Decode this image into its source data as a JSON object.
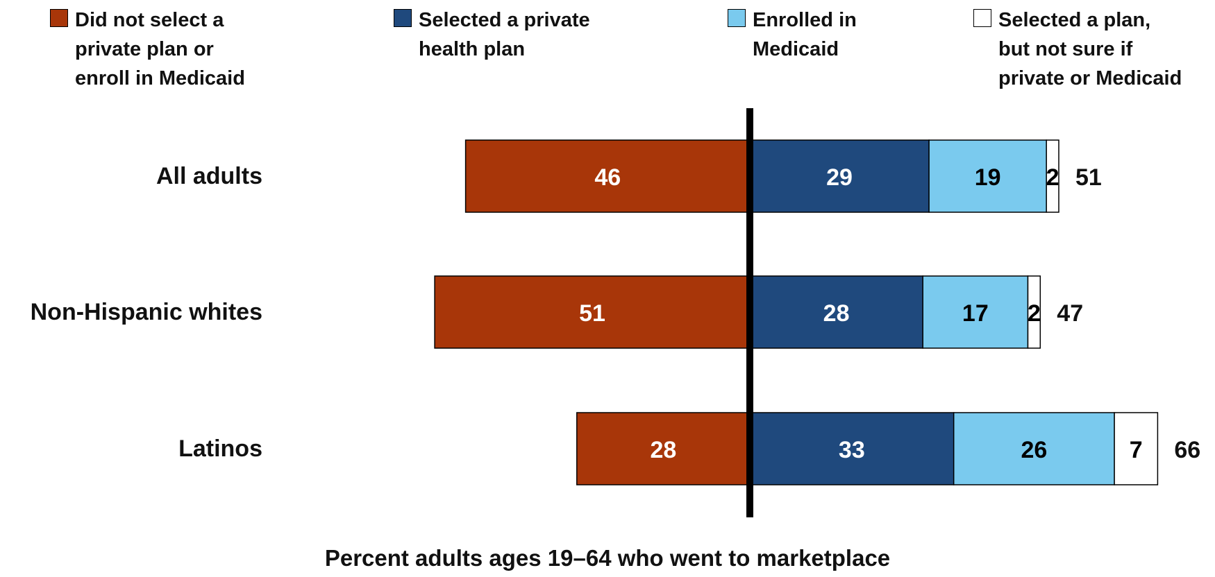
{
  "chart_data": {
    "type": "bar",
    "orientation": "horizontal-diverging",
    "title": "",
    "xlabel": "Percent adults ages 19–64 who went to marketplace",
    "categories": [
      "All adults",
      "Non-Hispanic whites",
      "Latinos"
    ],
    "series": [
      {
        "name": "Did not select a private plan or enroll in Medicaid",
        "label": "Did not select a\nprivate plan or\nenroll in Medicaid",
        "color": "#A83609",
        "text_color": "#ffffff",
        "direction": "left",
        "values": [
          46,
          51,
          28
        ]
      },
      {
        "name": "Selected a private health plan",
        "label": "Selected a private\nhealth plan",
        "color": "#1F497D",
        "text_color": "#ffffff",
        "direction": "right",
        "values": [
          29,
          28,
          33
        ]
      },
      {
        "name": "Enrolled in Medicaid",
        "label": "Enrolled in\nMedicaid",
        "color": "#7ACAEE",
        "text_color": "#000000",
        "direction": "right",
        "values": [
          19,
          17,
          26
        ]
      },
      {
        "name": "Selected a plan, but not sure if private or Medicaid",
        "label": "Selected a plan,\nbut not sure if\nprivate or Medicaid",
        "color": "#FFFFFF",
        "text_color": "#000000",
        "direction": "right",
        "values": [
          2,
          2,
          7
        ]
      }
    ],
    "totals": [
      51,
      47,
      66
    ],
    "legend_position": "top",
    "grid": false
  }
}
